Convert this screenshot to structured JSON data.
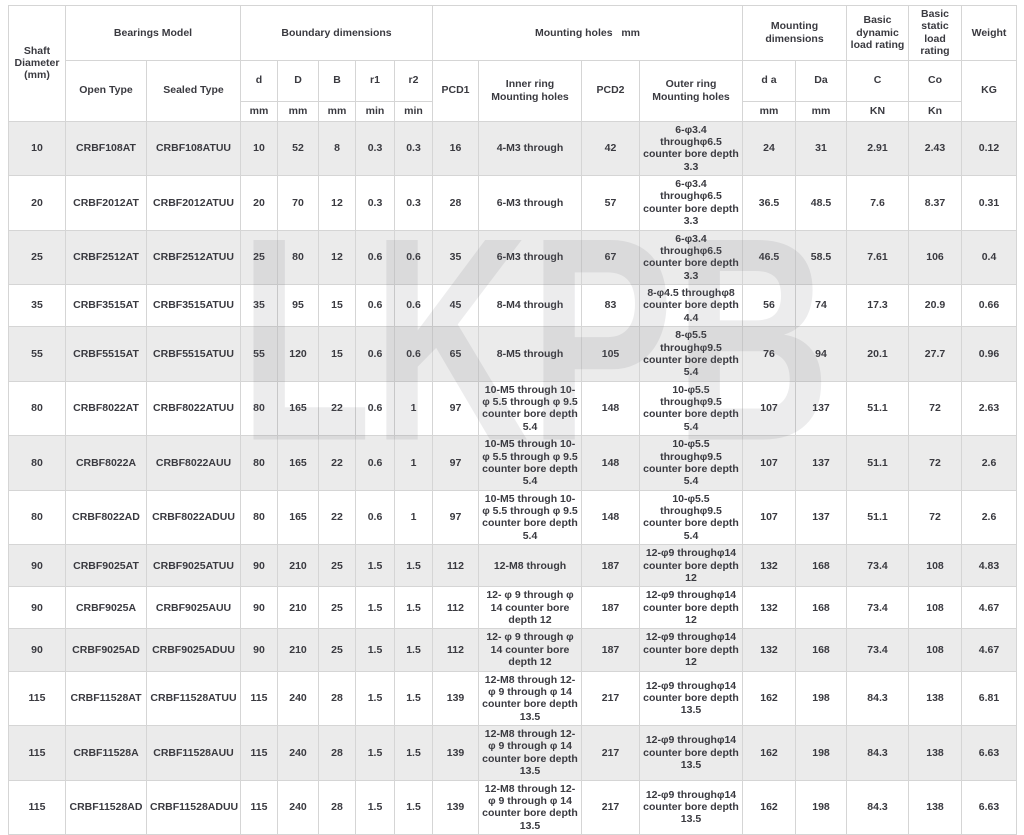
{
  "watermark": "LKPB",
  "colors": {
    "row_alt_bg": "#ebebeb",
    "border": "#d5d5d5",
    "text": "#3a3a40"
  },
  "header": {
    "shaft_diameter": "Shaft Diameter (mm)",
    "bearings_model": "Bearings Model",
    "open_type": "Open Type",
    "sealed_type": "Sealed Type",
    "boundary_dimensions": "Boundary dimensions",
    "d": "d",
    "D": "D",
    "B": "B",
    "r1": "r1",
    "r2": "r2",
    "mounting_holes": "Mounting holes   mm",
    "pcd1": "PCD1",
    "inner_ring": "Inner ring Mounting holes",
    "pcd2": "PCD2",
    "outer_ring": "Outer ring Mounting holes",
    "mounting_dimensions": "Mounting dimensions",
    "d_a": "d a",
    "Da": "Da",
    "dynamic_rating": "Basic dynamic load rating",
    "static_rating": "Basic static load rating",
    "weight": "Weight",
    "unit_mm": "mm",
    "unit_min": "min",
    "C": "C",
    "Co": "Co",
    "KN": "KN",
    "Kn": "Kn",
    "KG": "KG"
  },
  "rows": [
    [
      "10",
      "CRBF108AT",
      "CRBF108ATUU",
      "10",
      "52",
      "8",
      "0.3",
      "0.3",
      "16",
      "4-M3 through",
      "42",
      "6-φ3.4 throughφ6.5 counter bore depth 3.3",
      "24",
      "31",
      "2.91",
      "2.43",
      "0.12"
    ],
    [
      "20",
      "CRBF2012AT",
      "CRBF2012ATUU",
      "20",
      "70",
      "12",
      "0.3",
      "0.3",
      "28",
      "6-M3 through",
      "57",
      "6-φ3.4 throughφ6.5 counter bore depth 3.3",
      "36.5",
      "48.5",
      "7.6",
      "8.37",
      "0.31"
    ],
    [
      "25",
      "CRBF2512AT",
      "CRBF2512ATUU",
      "25",
      "80",
      "12",
      "0.6",
      "0.6",
      "35",
      "6-M3 through",
      "67",
      "6-φ3.4 throughφ6.5 counter bore depth 3.3",
      "46.5",
      "58.5",
      "7.61",
      "106",
      "0.4"
    ],
    [
      "35",
      "CRBF3515AT",
      "CRBF3515ATUU",
      "35",
      "95",
      "15",
      "0.6",
      "0.6",
      "45",
      "8-M4 through",
      "83",
      "8-φ4.5 throughφ8 counter bore depth 4.4",
      "56",
      "74",
      "17.3",
      "20.9",
      "0.66"
    ],
    [
      "55",
      "CRBF5515AT",
      "CRBF5515ATUU",
      "55",
      "120",
      "15",
      "0.6",
      "0.6",
      "65",
      "8-M5 through",
      "105",
      "8-φ5.5 throughφ9.5 counter bore depth 5.4",
      "76",
      "94",
      "20.1",
      "27.7",
      "0.96"
    ],
    [
      "80",
      "CRBF8022AT",
      "CRBF8022ATUU",
      "80",
      "165",
      "22",
      "0.6",
      "1",
      "97",
      "10-M5 through 10- φ 5.5 through φ 9.5 counter bore depth 5.4",
      "148",
      "10-φ5.5 throughφ9.5 counter bore depth 5.4",
      "107",
      "137",
      "51.1",
      "72",
      "2.63"
    ],
    [
      "80",
      "CRBF8022A",
      "CRBF8022AUU",
      "80",
      "165",
      "22",
      "0.6",
      "1",
      "97",
      "10-M5 through 10- φ 5.5 through φ 9.5 counter bore depth 5.4",
      "148",
      "10-φ5.5 throughφ9.5 counter bore depth 5.4",
      "107",
      "137",
      "51.1",
      "72",
      "2.6"
    ],
    [
      "80",
      "CRBF8022AD",
      "CRBF8022ADUU",
      "80",
      "165",
      "22",
      "0.6",
      "1",
      "97",
      "10-M5 through 10- φ 5.5 through φ 9.5 counter bore depth 5.4",
      "148",
      "10-φ5.5 throughφ9.5 counter bore depth 5.4",
      "107",
      "137",
      "51.1",
      "72",
      "2.6"
    ],
    [
      "90",
      "CRBF9025AT",
      "CRBF9025ATUU",
      "90",
      "210",
      "25",
      "1.5",
      "1.5",
      "112",
      "12-M8 through",
      "187",
      "12-φ9 throughφ14 counter bore depth 12",
      "132",
      "168",
      "73.4",
      "108",
      "4.83"
    ],
    [
      "90",
      "CRBF9025A",
      "CRBF9025AUU",
      "90",
      "210",
      "25",
      "1.5",
      "1.5",
      "112",
      "12- φ 9 through φ 14 counter bore depth 12",
      "187",
      "12-φ9 throughφ14 counter bore depth 12",
      "132",
      "168",
      "73.4",
      "108",
      "4.67"
    ],
    [
      "90",
      "CRBF9025AD",
      "CRBF9025ADUU",
      "90",
      "210",
      "25",
      "1.5",
      "1.5",
      "112",
      "12- φ 9 through φ 14 counter bore depth 12",
      "187",
      "12-φ9 throughφ14 counter bore depth 12",
      "132",
      "168",
      "73.4",
      "108",
      "4.67"
    ],
    [
      "115",
      "CRBF11528AT",
      "CRBF11528ATUU",
      "115",
      "240",
      "28",
      "1.5",
      "1.5",
      "139",
      "12-M8 through 12- φ 9 through φ 14 counter bore depth 13.5",
      "217",
      "12-φ9 throughφ14 counter bore depth 13.5",
      "162",
      "198",
      "84.3",
      "138",
      "6.81"
    ],
    [
      "115",
      "CRBF11528A",
      "CRBF11528AUU",
      "115",
      "240",
      "28",
      "1.5",
      "1.5",
      "139",
      "12-M8 through 12- φ 9 through φ 14 counter bore depth 13.5",
      "217",
      "12-φ9 throughφ14 counter bore depth 13.5",
      "162",
      "198",
      "84.3",
      "138",
      "6.63"
    ],
    [
      "115",
      "CRBF11528AD",
      "CRBF11528ADUU",
      "115",
      "240",
      "28",
      "1.5",
      "1.5",
      "139",
      "12-M8 through 12- φ 9 through φ 14 counter bore depth 13.5",
      "217",
      "12-φ9 throughφ14 counter bore depth 13.5",
      "162",
      "198",
      "84.3",
      "138",
      "6.63"
    ]
  ]
}
